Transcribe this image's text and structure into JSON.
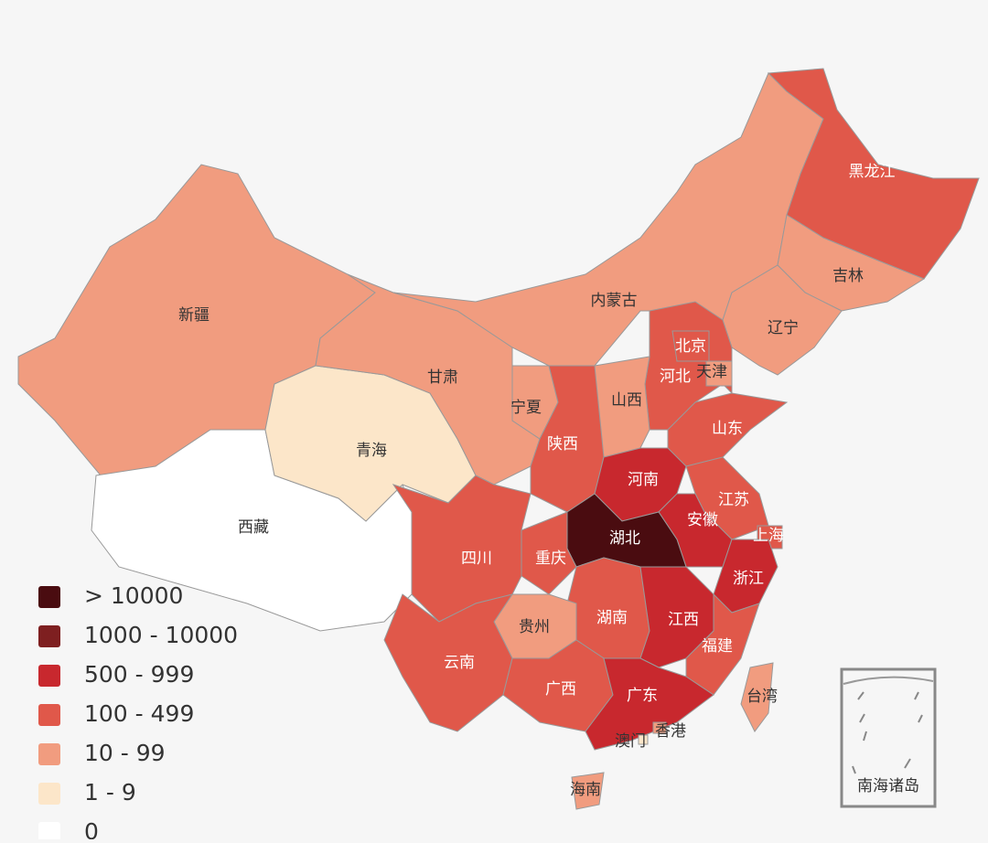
{
  "legend": [
    {
      "label": "> 10000",
      "color": "#4a0c10"
    },
    {
      "label": "1000 - 10000",
      "color": "#7e1f20"
    },
    {
      "label": "500 - 999",
      "color": "#c8282e"
    },
    {
      "label": "100 - 499",
      "color": "#e0584a"
    },
    {
      "label": "10 - 99",
      "color": "#f19c7f"
    },
    {
      "label": "1 - 9",
      "color": "#fce6c9"
    },
    {
      "label": "0",
      "color": "#ffffff"
    }
  ],
  "regions": [
    {
      "name": "新疆",
      "color": "#f19c7f"
    },
    {
      "name": "西藏",
      "color": "#ffffff"
    },
    {
      "name": "青海",
      "color": "#fce6c9"
    },
    {
      "name": "甘肃",
      "color": "#f19c7f"
    },
    {
      "name": "内蒙古",
      "color": "#f19c7f"
    },
    {
      "name": "黑龙江",
      "color": "#e0584a"
    },
    {
      "name": "吉林",
      "color": "#f19c7f"
    },
    {
      "name": "辽宁",
      "color": "#f19c7f"
    },
    {
      "name": "河北",
      "color": "#e0584a"
    },
    {
      "name": "北京",
      "color": "#e0584a"
    },
    {
      "name": "天津",
      "color": "#f19c7f"
    },
    {
      "name": "山西",
      "color": "#f19c7f"
    },
    {
      "name": "山东",
      "color": "#e0584a"
    },
    {
      "name": "宁夏",
      "color": "#f19c7f"
    },
    {
      "name": "陕西",
      "color": "#e0584a"
    },
    {
      "name": "河南",
      "color": "#c8282e"
    },
    {
      "name": "江苏",
      "color": "#e0584a"
    },
    {
      "name": "安徽",
      "color": "#c8282e"
    },
    {
      "name": "上海",
      "color": "#e0584a"
    },
    {
      "name": "浙江",
      "color": "#c8282e"
    },
    {
      "name": "湖北",
      "color": "#4a0c10"
    },
    {
      "name": "重庆",
      "color": "#e0584a"
    },
    {
      "name": "四川",
      "color": "#e0584a"
    },
    {
      "name": "湖南",
      "color": "#e0584a"
    },
    {
      "name": "江西",
      "color": "#c8282e"
    },
    {
      "name": "福建",
      "color": "#e0584a"
    },
    {
      "name": "贵州",
      "color": "#f19c7f"
    },
    {
      "name": "云南",
      "color": "#e0584a"
    },
    {
      "name": "广西",
      "color": "#e0584a"
    },
    {
      "name": "广东",
      "color": "#c8282e"
    },
    {
      "name": "台湾",
      "color": "#f19c7f"
    },
    {
      "name": "香港",
      "color": "#f19c7f"
    },
    {
      "name": "澳门",
      "color": "#fce6c9"
    },
    {
      "name": "海南",
      "color": "#f19c7f"
    }
  ],
  "inset_label": "南海诸岛"
}
